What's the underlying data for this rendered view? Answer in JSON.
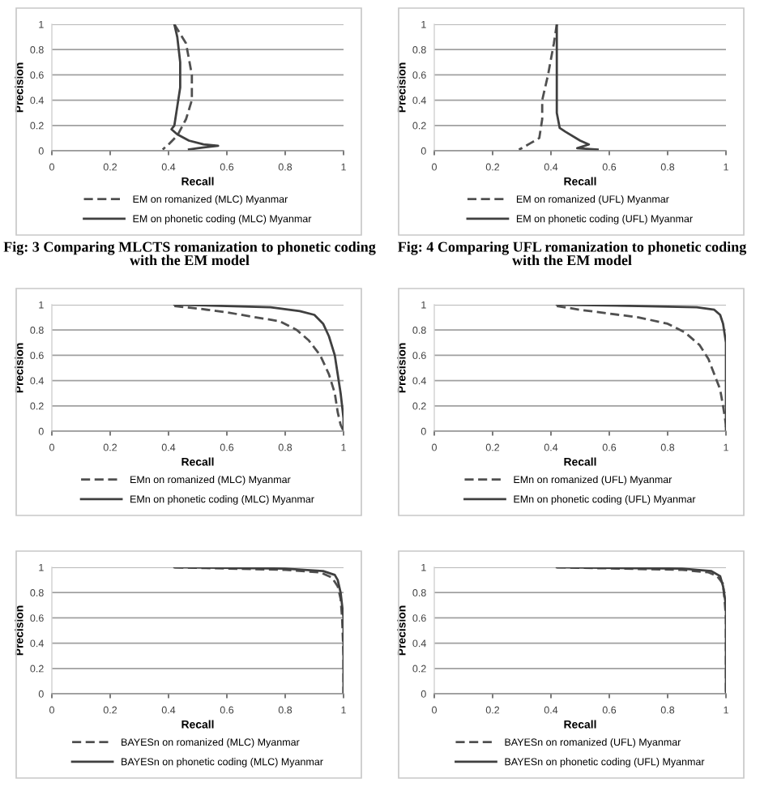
{
  "chart_data": [
    {
      "type": "line",
      "xlabel": "Recall",
      "ylabel": "Precision",
      "xlim": [
        0,
        1
      ],
      "ylim": [
        0,
        1
      ],
      "xticks": [
        0,
        0.2,
        0.4,
        0.6,
        0.8,
        1
      ],
      "yticks": [
        0,
        0.2,
        0.4,
        0.6,
        0.8,
        1
      ],
      "grid": "y",
      "legend": "bottom",
      "annotations": [
        "Fig: 3 Comparing MLCTS romanization to phonetic coding with the EM model"
      ],
      "series": [
        {
          "name": "EM on romanized (MLC) Myanmar",
          "color": "#505050",
          "line_style": "dashed",
          "x": [
            0.42,
            0.46,
            0.48,
            0.48,
            0.46,
            0.43,
            0.4,
            0.38
          ],
          "values": [
            1,
            0.85,
            0.6,
            0.4,
            0.25,
            0.12,
            0.05,
            0.01
          ]
        },
        {
          "name": "EM on phonetic coding (MLC) Myanmar",
          "color": "#404040",
          "line_style": "solid",
          "x": [
            0.42,
            0.43,
            0.44,
            0.44,
            0.43,
            0.42,
            0.41,
            0.43,
            0.47,
            0.52,
            0.57,
            0.5,
            0.47
          ],
          "values": [
            1,
            0.9,
            0.7,
            0.5,
            0.35,
            0.2,
            0.17,
            0.13,
            0.08,
            0.05,
            0.04,
            0.02,
            0.01
          ]
        }
      ]
    },
    {
      "type": "line",
      "xlabel": "Recall",
      "ylabel": "Precision",
      "xlim": [
        0,
        1
      ],
      "ylim": [
        0,
        1
      ],
      "xticks": [
        0,
        0.2,
        0.4,
        0.6,
        0.8,
        1
      ],
      "yticks": [
        0,
        0.2,
        0.4,
        0.6,
        0.8,
        1
      ],
      "grid": "y",
      "legend": "bottom",
      "annotations": [
        "Fig: 4 Comparing UFL romanization to phonetic coding with the EM model"
      ],
      "series": [
        {
          "name": "EM on romanized (UFL) Myanmar",
          "color": "#505050",
          "line_style": "dashed",
          "x": [
            0.42,
            0.41,
            0.39,
            0.37,
            0.37,
            0.36,
            0.33,
            0.3,
            0.29
          ],
          "values": [
            1,
            0.85,
            0.6,
            0.4,
            0.25,
            0.1,
            0.06,
            0.02,
            0.01
          ]
        },
        {
          "name": "EM on phonetic coding (UFL) Myanmar",
          "color": "#404040",
          "line_style": "solid",
          "x": [
            0.42,
            0.42,
            0.42,
            0.42,
            0.43,
            0.45,
            0.5,
            0.53,
            0.49,
            0.56
          ],
          "values": [
            1,
            0.8,
            0.5,
            0.3,
            0.18,
            0.15,
            0.08,
            0.05,
            0.02,
            0.01
          ]
        }
      ]
    },
    {
      "type": "line",
      "xlabel": "Recall",
      "ylabel": "Precision",
      "xlim": [
        0,
        1
      ],
      "ylim": [
        0,
        1
      ],
      "xticks": [
        0,
        0.2,
        0.4,
        0.6,
        0.8,
        1
      ],
      "yticks": [
        0,
        0.2,
        0.4,
        0.6,
        0.8,
        1
      ],
      "grid": "y",
      "legend": "bottom",
      "series": [
        {
          "name": "EMn on romanized (MLC) Myanmar",
          "color": "#505050",
          "line_style": "dashed",
          "x": [
            0.42,
            0.5,
            0.6,
            0.7,
            0.78,
            0.84,
            0.88,
            0.92,
            0.95,
            0.97,
            0.98,
            0.99,
            1
          ],
          "values": [
            0.99,
            0.97,
            0.94,
            0.9,
            0.87,
            0.8,
            0.72,
            0.6,
            0.45,
            0.3,
            0.15,
            0.05,
            0
          ]
        },
        {
          "name": "EMn on phonetic coding (MLC) Myanmar",
          "color": "#404040",
          "line_style": "solid",
          "x": [
            0.42,
            0.6,
            0.75,
            0.85,
            0.9,
            0.93,
            0.95,
            0.97,
            0.98,
            0.99,
            1,
            1
          ],
          "values": [
            1,
            0.99,
            0.98,
            0.95,
            0.92,
            0.85,
            0.75,
            0.6,
            0.45,
            0.3,
            0.1,
            0
          ]
        }
      ]
    },
    {
      "type": "line",
      "xlabel": "Recall",
      "ylabel": "Precision",
      "xlim": [
        0,
        1
      ],
      "ylim": [
        0,
        1
      ],
      "xticks": [
        0,
        0.2,
        0.4,
        0.6,
        0.8,
        1
      ],
      "yticks": [
        0,
        0.2,
        0.4,
        0.6,
        0.8,
        1
      ],
      "grid": "y",
      "legend": "bottom",
      "series": [
        {
          "name": "EMn on romanized (UFL) Myanmar",
          "color": "#505050",
          "line_style": "dashed",
          "x": [
            0.42,
            0.5,
            0.6,
            0.7,
            0.8,
            0.86,
            0.91,
            0.94,
            0.96,
            0.98,
            0.99,
            1,
            1
          ],
          "values": [
            0.99,
            0.96,
            0.93,
            0.9,
            0.85,
            0.78,
            0.68,
            0.57,
            0.45,
            0.33,
            0.2,
            0.05,
            0
          ]
        },
        {
          "name": "EMn on phonetic coding (UFL) Myanmar",
          "color": "#404040",
          "line_style": "solid",
          "x": [
            0.42,
            0.7,
            0.9,
            0.96,
            0.98,
            0.99,
            1,
            1
          ],
          "values": [
            1,
            0.99,
            0.98,
            0.96,
            0.92,
            0.85,
            0.7,
            0
          ]
        }
      ]
    },
    {
      "type": "line",
      "xlabel": "Recall",
      "ylabel": "Precision",
      "xlim": [
        0,
        1
      ],
      "ylim": [
        0,
        1
      ],
      "xticks": [
        0,
        0.2,
        0.4,
        0.6,
        0.8,
        1
      ],
      "yticks": [
        0,
        0.2,
        0.4,
        0.6,
        0.8,
        1
      ],
      "grid": "y",
      "legend": "bottom",
      "series": [
        {
          "name": "BAYESn on romanized (MLC) Myanmar",
          "color": "#505050",
          "line_style": "dashed",
          "x": [
            0.42,
            0.8,
            0.92,
            0.96,
            0.98,
            0.99,
            0.995,
            1,
            1
          ],
          "values": [
            1,
            0.98,
            0.96,
            0.92,
            0.85,
            0.75,
            0.6,
            0.3,
            0
          ]
        },
        {
          "name": "BAYESn on phonetic coding (MLC) Myanmar",
          "color": "#404040",
          "line_style": "solid",
          "x": [
            0.42,
            0.8,
            0.93,
            0.97,
            0.98,
            0.99,
            1,
            1
          ],
          "values": [
            1,
            0.99,
            0.97,
            0.94,
            0.9,
            0.8,
            0.6,
            0
          ]
        }
      ]
    },
    {
      "type": "line",
      "xlabel": "Recall",
      "ylabel": "Precision",
      "xlim": [
        0,
        1
      ],
      "ylim": [
        0,
        1
      ],
      "xticks": [
        0,
        0.2,
        0.4,
        0.6,
        0.8,
        1
      ],
      "yticks": [
        0,
        0.2,
        0.4,
        0.6,
        0.8,
        1
      ],
      "grid": "y",
      "legend": "bottom",
      "series": [
        {
          "name": "BAYESn on romanized (UFL) Myanmar",
          "color": "#505050",
          "line_style": "dashed",
          "x": [
            0.42,
            0.85,
            0.94,
            0.97,
            0.99,
            0.995,
            1,
            1
          ],
          "values": [
            1,
            0.98,
            0.96,
            0.93,
            0.87,
            0.75,
            0.6,
            0
          ]
        },
        {
          "name": "BAYESn on phonetic coding (UFL) Myanmar",
          "color": "#404040",
          "line_style": "solid",
          "x": [
            0.42,
            0.85,
            0.95,
            0.98,
            0.99,
            1,
            1
          ],
          "values": [
            1,
            0.99,
            0.97,
            0.93,
            0.85,
            0.7,
            0
          ]
        }
      ]
    }
  ]
}
